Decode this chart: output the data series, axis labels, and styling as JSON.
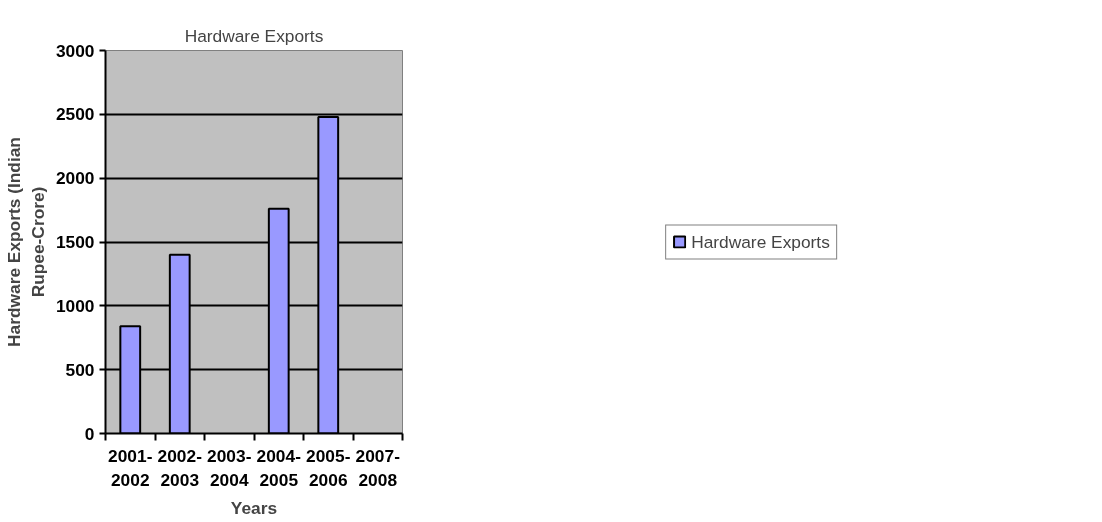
{
  "chart_data": {
    "type": "bar",
    "title": "Hardware Exports",
    "xlabel": "Years",
    "ylabel": "Hardware Exports (Indian\nRupee-Crore)",
    "categories": [
      "2001-\n2002",
      "2002-\n2003",
      "2003-\n2004",
      "2004-\n2005",
      "2005-\n2006",
      "2007-\n2008"
    ],
    "series": [
      {
        "name": "Hardware Exports",
        "color": "#9999ff",
        "values": [
          840,
          1400,
          null,
          1760,
          2480,
          null
        ]
      }
    ],
    "ylim": [
      0,
      3000
    ],
    "yticks": [
      0,
      500,
      1000,
      1500,
      2000,
      2500,
      3000
    ],
    "grid": "y",
    "legend": "right"
  }
}
